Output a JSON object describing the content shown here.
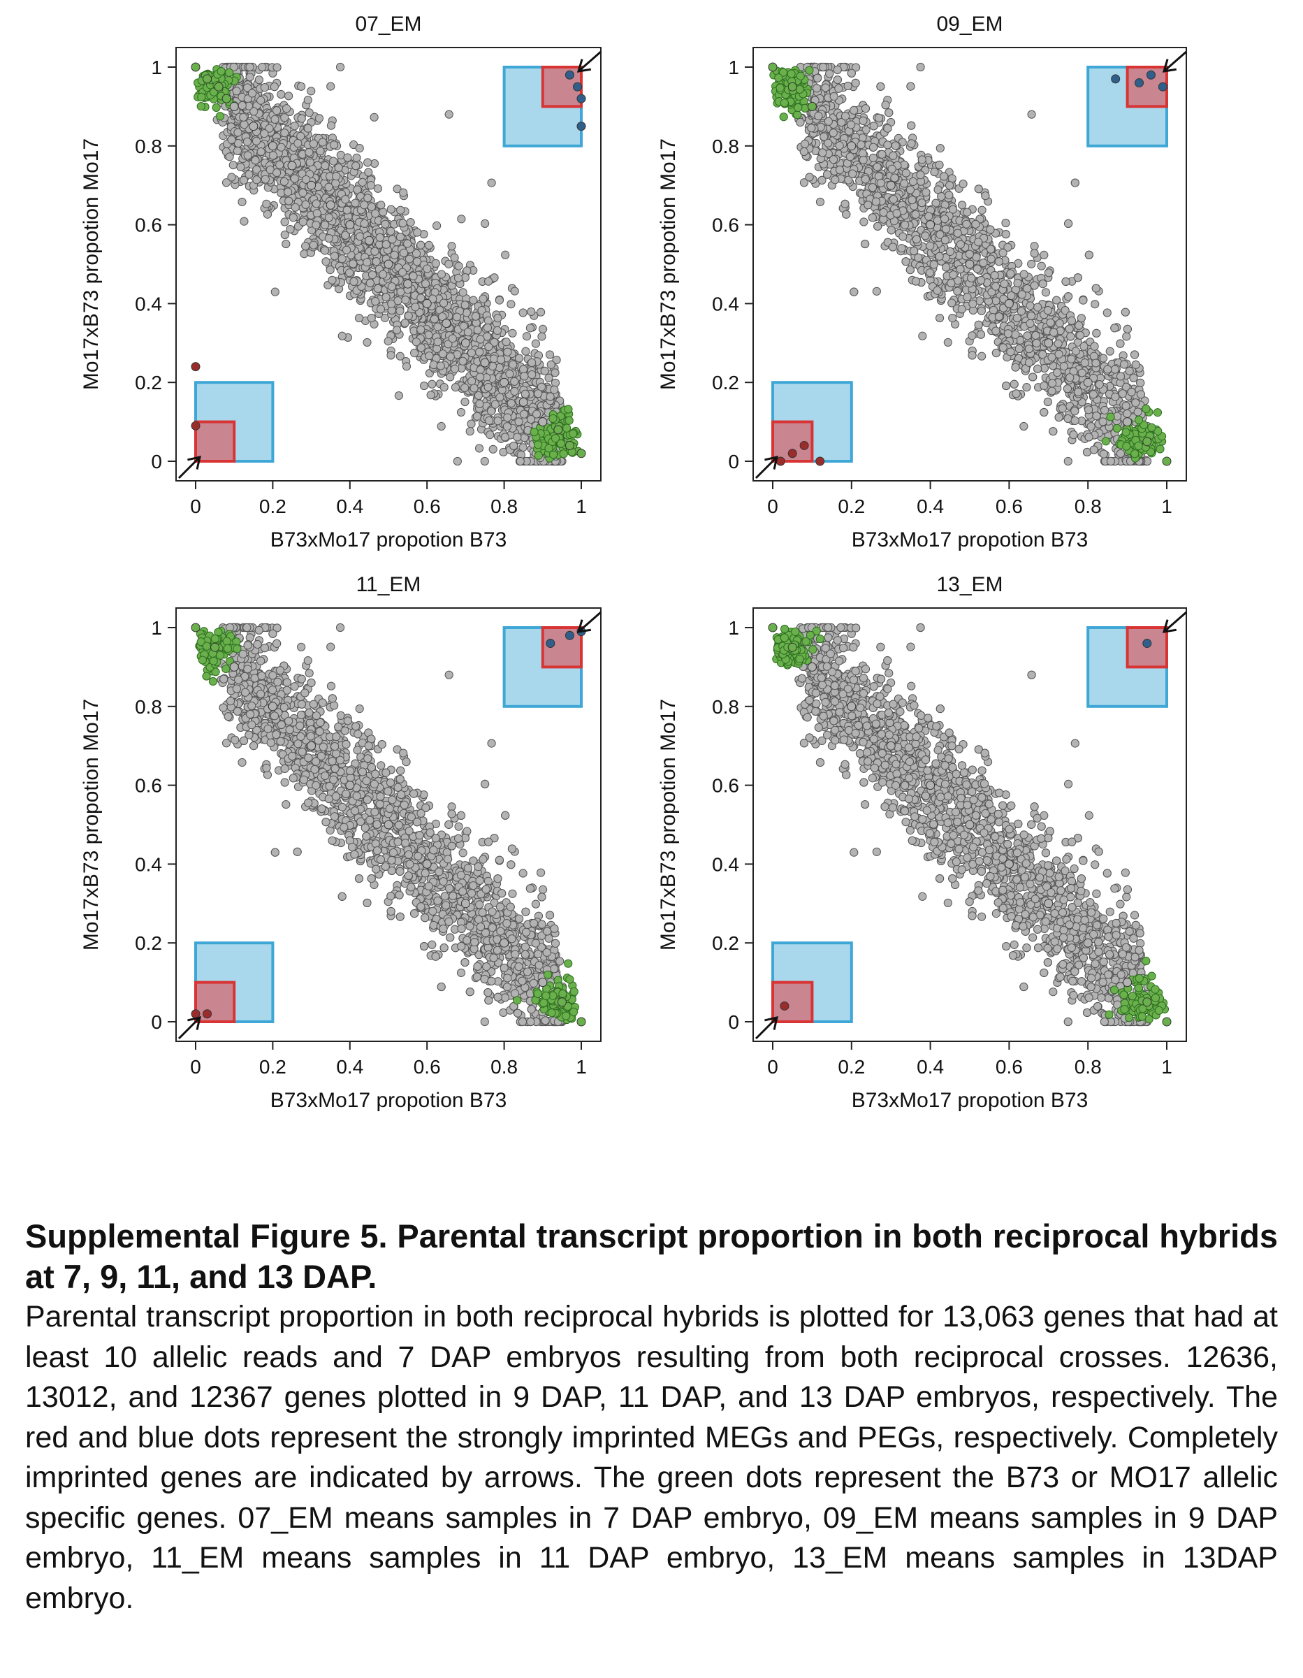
{
  "panels": [
    {
      "title": "07_EM",
      "xlabel": "B73xMo17 propotion B73",
      "ylabel": "Mo17xB73 propotion Mo17"
    },
    {
      "title": "09_EM",
      "xlabel": "B73xMo17 propotion B73",
      "ylabel": "Mo17xB73 propotion Mo17"
    },
    {
      "title": "11_EM",
      "xlabel": "B73xMo17 propotion B73",
      "ylabel": "Mo17xB73 propotion Mo17"
    },
    {
      "title": "13_EM",
      "xlabel": "B73xMo17 propotion B73",
      "ylabel": "Mo17xB73 propotion Mo17"
    }
  ],
  "chart_data": [
    {
      "type": "scatter",
      "title": "07_EM",
      "xlabel": "B73xMo17 propotion B73",
      "ylabel": "Mo17xB73 propotion Mo17",
      "xlim": [
        0,
        1
      ],
      "ylim": [
        0,
        1
      ],
      "xticks": [
        "0",
        "0.2",
        "0.4",
        "0.6",
        "0.8",
        "1"
      ],
      "yticks": [
        "0",
        "0.2",
        "0.4",
        "0.6",
        "0.8",
        "1"
      ],
      "highlight_boxes": [
        {
          "x": [
            0.8,
            1.0
          ],
          "y": [
            0.8,
            1.0
          ],
          "color": "#a9d8ec"
        },
        {
          "x": [
            0.9,
            1.0
          ],
          "y": [
            0.9,
            1.0
          ],
          "color": "#c98690"
        },
        {
          "x": [
            0.0,
            0.2
          ],
          "y": [
            0.0,
            0.2
          ],
          "color": "#a9d8ec"
        },
        {
          "x": [
            0.0,
            0.1
          ],
          "y": [
            0.0,
            0.1
          ],
          "color": "#c98690"
        }
      ],
      "series": [
        {
          "color": "#b3b3b3",
          "x": [
            0.1,
            0.15,
            0.2,
            0.25,
            0.3,
            0.35,
            0.4,
            0.45,
            0.5,
            0.55,
            0.6,
            0.65,
            0.7,
            0.75,
            0.8,
            0.85,
            0.9
          ],
          "y": [
            0.9,
            0.85,
            0.8,
            0.75,
            0.7,
            0.65,
            0.6,
            0.56,
            0.5,
            0.45,
            0.4,
            0.35,
            0.3,
            0.25,
            0.2,
            0.15,
            0.1
          ]
        },
        {
          "color": "#6ab04c",
          "x": [
            0.0,
            0.03,
            0.06,
            0.08,
            0.94,
            0.97,
            1.0
          ],
          "y": [
            1.0,
            0.97,
            0.95,
            0.92,
            0.08,
            0.04,
            0.02
          ]
        },
        {
          "color": "#9b2c2c",
          "x": [
            0.0,
            0.0
          ],
          "y": [
            0.24,
            0.09
          ]
        },
        {
          "color": "#2f5f8a",
          "x": [
            0.97,
            0.99,
            1.0,
            1.0
          ],
          "y": [
            0.98,
            0.95,
            0.92,
            0.85
          ]
        }
      ]
    },
    {
      "type": "scatter",
      "title": "09_EM",
      "xlabel": "B73xMo17 propotion B73",
      "ylabel": "Mo17xB73 propotion Mo17",
      "xlim": [
        0,
        1
      ],
      "ylim": [
        0,
        1
      ],
      "xticks": [
        "0",
        "0.2",
        "0.4",
        "0.6",
        "0.8",
        "1"
      ],
      "yticks": [
        "0",
        "0.2",
        "0.4",
        "0.6",
        "0.8",
        "1"
      ],
      "highlight_boxes": [
        {
          "x": [
            0.8,
            1.0
          ],
          "y": [
            0.8,
            1.0
          ],
          "color": "#a9d8ec"
        },
        {
          "x": [
            0.9,
            1.0
          ],
          "y": [
            0.9,
            1.0
          ],
          "color": "#c98690"
        },
        {
          "x": [
            0.0,
            0.2
          ],
          "y": [
            0.0,
            0.2
          ],
          "color": "#a9d8ec"
        },
        {
          "x": [
            0.0,
            0.1
          ],
          "y": [
            0.0,
            0.1
          ],
          "color": "#c98690"
        }
      ],
      "series": [
        {
          "color": "#b3b3b3",
          "x": [
            0.1,
            0.2,
            0.3,
            0.4,
            0.5,
            0.6,
            0.7,
            0.8,
            0.9
          ],
          "y": [
            0.9,
            0.8,
            0.7,
            0.6,
            0.5,
            0.4,
            0.3,
            0.2,
            0.1
          ]
        },
        {
          "color": "#6ab04c",
          "x": [
            0.0,
            0.05,
            0.1,
            0.95,
            1.0
          ],
          "y": [
            1.0,
            0.95,
            0.9,
            0.05,
            0.0
          ]
        },
        {
          "color": "#9b2c2c",
          "x": [
            0.02,
            0.05,
            0.08,
            0.12
          ],
          "y": [
            0.0,
            0.02,
            0.04,
            0.0
          ]
        },
        {
          "color": "#2f5f8a",
          "x": [
            0.87,
            0.93,
            0.96,
            0.99
          ],
          "y": [
            0.97,
            0.96,
            0.98,
            0.95
          ]
        }
      ]
    },
    {
      "type": "scatter",
      "title": "11_EM",
      "xlabel": "B73xMo17 propotion B73",
      "ylabel": "Mo17xB73 propotion Mo17",
      "xlim": [
        0,
        1
      ],
      "ylim": [
        0,
        1
      ],
      "xticks": [
        "0",
        "0.2",
        "0.4",
        "0.6",
        "0.8",
        "1"
      ],
      "yticks": [
        "0",
        "0.2",
        "0.4",
        "0.6",
        "0.8",
        "1"
      ],
      "highlight_boxes": [
        {
          "x": [
            0.8,
            1.0
          ],
          "y": [
            0.8,
            1.0
          ],
          "color": "#a9d8ec"
        },
        {
          "x": [
            0.9,
            1.0
          ],
          "y": [
            0.9,
            1.0
          ],
          "color": "#c98690"
        },
        {
          "x": [
            0.0,
            0.2
          ],
          "y": [
            0.0,
            0.2
          ],
          "color": "#a9d8ec"
        },
        {
          "x": [
            0.0,
            0.1
          ],
          "y": [
            0.0,
            0.1
          ],
          "color": "#c98690"
        }
      ],
      "series": [
        {
          "color": "#b3b3b3",
          "x": [
            0.1,
            0.2,
            0.3,
            0.4,
            0.5,
            0.6,
            0.7,
            0.8,
            0.9
          ],
          "y": [
            0.9,
            0.8,
            0.7,
            0.6,
            0.5,
            0.4,
            0.3,
            0.2,
            0.1
          ]
        },
        {
          "color": "#6ab04c",
          "x": [
            0.0,
            0.05,
            0.95,
            1.0
          ],
          "y": [
            1.0,
            0.95,
            0.05,
            0.0
          ]
        },
        {
          "color": "#9b2c2c",
          "x": [
            0.0,
            0.03
          ],
          "y": [
            0.02,
            0.02
          ]
        },
        {
          "color": "#2f5f8a",
          "x": [
            0.92,
            0.97,
            1.0
          ],
          "y": [
            0.96,
            0.98,
            0.99
          ]
        }
      ]
    },
    {
      "type": "scatter",
      "title": "13_EM",
      "xlabel": "B73xMo17 propotion B73",
      "ylabel": "Mo17xB73 propotion Mo17",
      "xlim": [
        0,
        1
      ],
      "ylim": [
        0,
        1
      ],
      "xticks": [
        "0",
        "0.2",
        "0.4",
        "0.6",
        "0.8",
        "1"
      ],
      "yticks": [
        "0",
        "0.2",
        "0.4",
        "0.6",
        "0.8",
        "1"
      ],
      "highlight_boxes": [
        {
          "x": [
            0.8,
            1.0
          ],
          "y": [
            0.8,
            1.0
          ],
          "color": "#a9d8ec"
        },
        {
          "x": [
            0.9,
            1.0
          ],
          "y": [
            0.9,
            1.0
          ],
          "color": "#c98690"
        },
        {
          "x": [
            0.0,
            0.2
          ],
          "y": [
            0.0,
            0.2
          ],
          "color": "#a9d8ec"
        },
        {
          "x": [
            0.0,
            0.1
          ],
          "y": [
            0.0,
            0.1
          ],
          "color": "#c98690"
        }
      ],
      "series": [
        {
          "color": "#b3b3b3",
          "x": [
            0.1,
            0.2,
            0.3,
            0.4,
            0.5,
            0.6,
            0.7,
            0.8,
            0.9
          ],
          "y": [
            0.9,
            0.8,
            0.7,
            0.6,
            0.5,
            0.4,
            0.3,
            0.2,
            0.1
          ]
        },
        {
          "color": "#6ab04c",
          "x": [
            0.0,
            0.05,
            0.95,
            1.0
          ],
          "y": [
            1.0,
            0.95,
            0.05,
            0.0
          ]
        },
        {
          "color": "#9b2c2c",
          "x": [
            0.03
          ],
          "y": [
            0.04
          ]
        },
        {
          "color": "#2f5f8a",
          "x": [
            0.95
          ],
          "y": [
            0.96
          ]
        }
      ]
    }
  ],
  "caption": {
    "title": "Supplemental Figure 5. Parental transcript proportion in both reciprocal hybrids at 7, 9, 11, and 13 DAP.",
    "body": "Parental transcript proportion in both reciprocal hybrids is plotted for 13,063 genes that had at least 10 allelic reads and 7 DAP embryos resulting from both reciprocal crosses. 12636, 13012, and 12367 genes plotted in 9 DAP, 11 DAP, and 13 DAP embryos, respectively. The red and blue dots represent the strongly imprinted MEGs and PEGs, respectively. Completely imprinted genes are indicated by arrows. The green dots represent the B73 or MO17 allelic specific genes. 07_EM means samples in 7 DAP embryo, 09_EM means samples in 9 DAP embryo, 11_EM means samples in 11 DAP embryo, 13_EM means samples in 13DAP embryo."
  }
}
